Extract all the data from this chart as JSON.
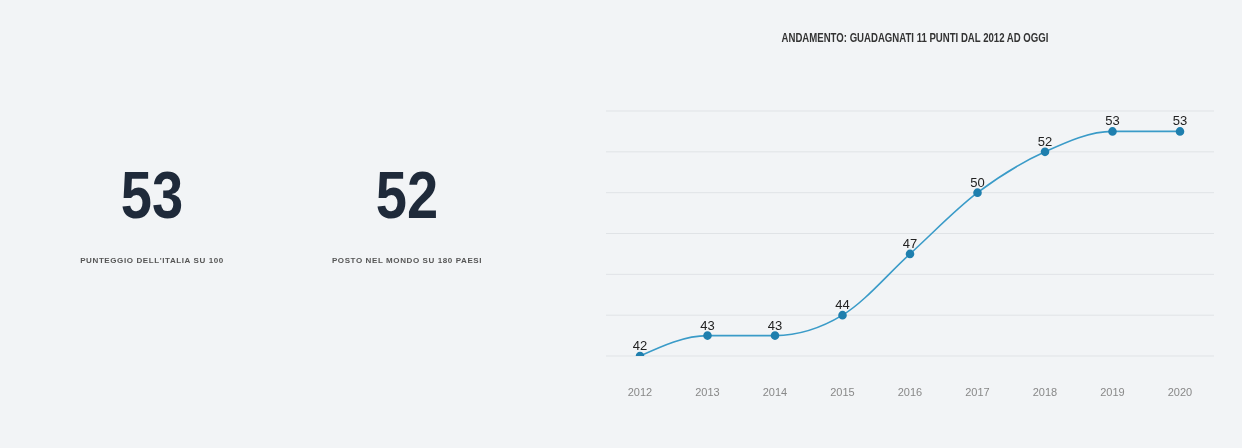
{
  "chart_data": [
    {
      "type": "other",
      "annotations": [
        "53",
        "PUNTEGGIO DELL'ITALIA SU 100",
        "52",
        "POSTO NEL MONDO SU 180 PAESI"
      ]
    },
    {
      "type": "line",
      "title": "ANDAMENTO: GUADAGNATI 11 PUNTI DAL 2012 AD OGGI",
      "categories": [
        "2012",
        "2013",
        "2014",
        "2015",
        "2016",
        "2017",
        "2018",
        "2019",
        "2020"
      ],
      "values": [
        42,
        43,
        43,
        44,
        47,
        50,
        52,
        53,
        53
      ],
      "color": "#3a9bc8",
      "ylim": [
        42,
        54
      ],
      "yticks": [
        {
          "value": 42,
          "label": null
        },
        {
          "value": 44,
          "label": null
        },
        {
          "value": 46,
          "label": null
        },
        {
          "value": 48,
          "label": null
        },
        {
          "value": 50,
          "label": null
        },
        {
          "value": 52,
          "label": null
        },
        {
          "value": 54,
          "label": null
        }
      ],
      "grid": "y",
      "tick_labels": "x",
      "data_labels": true,
      "marker": "circle"
    }
  ]
}
